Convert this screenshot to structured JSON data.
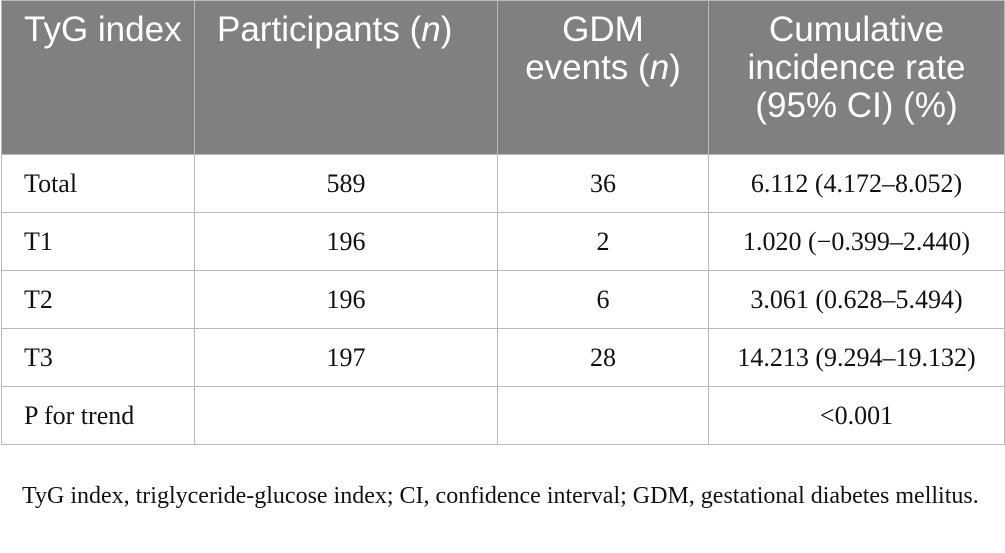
{
  "header": {
    "col1": "TyG index",
    "col2_main": "Participants (",
    "col2_italic": "n",
    "col2_end": ")",
    "col3_main": "GDM events (",
    "col3_italic": "n",
    "col3_end": ")",
    "col4": "Cumulative incidence rate (95% CI) (%)"
  },
  "rows": [
    {
      "label": "Total",
      "participants": "589",
      "events": "36",
      "rate": "6.112 (4.172–8.052)"
    },
    {
      "label": "T1",
      "participants": "196",
      "events": "2",
      "rate": "1.020 (−0.399–2.440)"
    },
    {
      "label": "T2",
      "participants": "196",
      "events": "6",
      "rate": "3.061 (0.628–5.494)"
    },
    {
      "label": "T3",
      "participants": "197",
      "events": "28",
      "rate": "14.213 (9.294–19.132)"
    },
    {
      "label": "P for trend",
      "participants": "",
      "events": "",
      "rate": "<0.001"
    }
  ],
  "footnote": "TyG index, triglyceride-glucose index; CI, confidence interval; GDM, gestational diabetes mellitus."
}
